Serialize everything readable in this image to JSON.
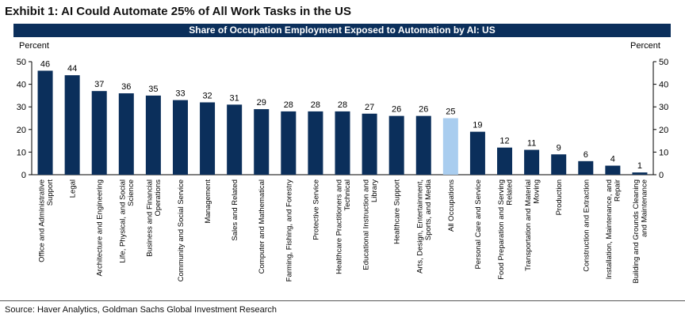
{
  "exhibit_title": "Exhibit 1: AI Could Automate 25% of All Work Tasks in the US",
  "source": "Source: Haver Analytics, Goldman Sachs Global Investment Research",
  "colors": {
    "bar": "#0b2f5b",
    "highlight": "#a9cdef",
    "banner": "#0b2f5b"
  },
  "chart_data": {
    "type": "bar",
    "title": "Share of Occupation Employment Exposed to Automation by AI: US",
    "ylabel_left": "Percent",
    "ylabel_right": "Percent",
    "ylim": [
      0,
      50
    ],
    "yticks": [
      0,
      10,
      20,
      30,
      40,
      50
    ],
    "highlight_category": "All Occupations",
    "categories": [
      [
        "Office and Administrative",
        "Support"
      ],
      [
        "Legal"
      ],
      [
        "Architecture and Engineering"
      ],
      [
        "Life, Physical, and Social",
        "Science"
      ],
      [
        "Business and Financial",
        "Operations"
      ],
      [
        "Community and Social Service"
      ],
      [
        "Management"
      ],
      [
        "Sales and Related"
      ],
      [
        "Computer and Mathematical"
      ],
      [
        "Farming, Fishing, and Forestry"
      ],
      [
        "Protective Service"
      ],
      [
        "Healthcare Practitioners and",
        "Technical"
      ],
      [
        "Educational Instruction and",
        "Library"
      ],
      [
        "Healthcare Support"
      ],
      [
        "Arts, Design, Entertainment,",
        "Sports, and Media"
      ],
      [
        "All Occupations"
      ],
      [
        "Personal Care and Service"
      ],
      [
        "Food Preparation and Serving",
        "Related"
      ],
      [
        "Transportation and Material",
        "Moving"
      ],
      [
        "Production"
      ],
      [
        "Construction and Extraction"
      ],
      [
        "Installation, Maintenance, and",
        "Repair"
      ],
      [
        "Building and Grounds Cleaning",
        "and Maintenance"
      ]
    ],
    "values": [
      46,
      44,
      37,
      36,
      35,
      33,
      32,
      31,
      29,
      28,
      28,
      28,
      27,
      26,
      26,
      25,
      19,
      12,
      11,
      9,
      6,
      4,
      1
    ]
  }
}
